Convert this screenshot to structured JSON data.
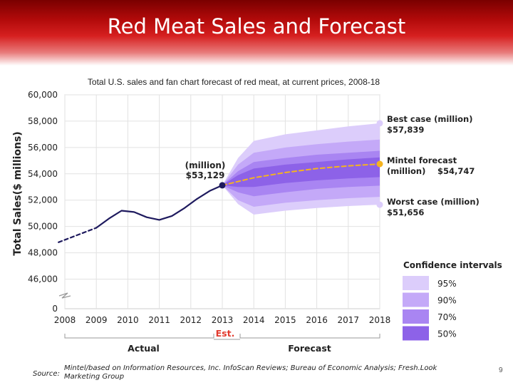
{
  "slide": {
    "title": "Red Meat Sales and Forecast",
    "source_label": "Source:",
    "source_text": "Mintel/based on Information Resources, Inc. InfoScan Reviews; Bureau of Economic Analysis; Fresh.Look Marketing Group",
    "page_number": "9"
  },
  "chart_data": {
    "type": "line",
    "title": "Total U.S. sales and fan chart forecast of red meat, at current prices, 2008-18",
    "xlabel": "",
    "ylabel": "Total Sales($ millions)",
    "x": [
      2008,
      2009,
      2010,
      2011,
      2012,
      2013,
      2014,
      2015,
      2016,
      2017,
      2018
    ],
    "x_tick_labels": [
      "2008",
      "2009",
      "2010",
      "2011",
      "2012",
      "2013",
      "2014",
      "2015",
      "2016",
      "2017",
      "2018"
    ],
    "y_tick_values": [
      46000,
      48000,
      50000,
      52000,
      54000,
      56000,
      58000,
      60000
    ],
    "y_tick_labels": [
      "46,000",
      "48,000",
      "50,000",
      "52,000",
      "54,000",
      "56,000",
      "58,000",
      "60,000"
    ],
    "y_zero_label": "0",
    "ylim": [
      45000,
      60000
    ],
    "grid": true,
    "series": [
      {
        "name": "Actual (dashed, estimated early)",
        "x": [
          2007.8,
          2009
        ],
        "values": [
          48800,
          49900
        ],
        "style": "dashed"
      },
      {
        "name": "Actual",
        "x": [
          2009,
          2009.4,
          2009.8,
          2010.2,
          2010.6,
          2011,
          2011.4,
          2011.8,
          2012.2,
          2012.6,
          2013
        ],
        "values": [
          49900,
          50600,
          51200,
          51100,
          50700,
          50500,
          50800,
          51400,
          52100,
          52700,
          53129
        ],
        "style": "solid"
      },
      {
        "name": "Mintel forecast",
        "x": [
          2013,
          2014,
          2015,
          2016,
          2017,
          2018
        ],
        "values": [
          53129,
          53700,
          54100,
          54400,
          54600,
          54747
        ],
        "style": "dashed"
      }
    ],
    "fan": {
      "x": [
        2013,
        2013.5,
        2014,
        2015,
        2016,
        2017,
        2018
      ],
      "bands": [
        {
          "level": "95%",
          "upper": [
            53129,
            55200,
            56500,
            57000,
            57300,
            57600,
            57839
          ],
          "lower": [
            53129,
            51700,
            50900,
            51200,
            51400,
            51550,
            51656
          ],
          "color": "#dccdfb"
        },
        {
          "level": "90%",
          "upper": [
            53129,
            54700,
            55600,
            56000,
            56250,
            56450,
            56600
          ],
          "lower": [
            53129,
            52000,
            51500,
            51800,
            52000,
            52150,
            52250
          ],
          "color": "#c4a9f8"
        },
        {
          "level": "70%",
          "upper": [
            53129,
            54200,
            54900,
            55200,
            55450,
            55600,
            55750
          ],
          "lower": [
            53129,
            52600,
            52300,
            52600,
            52850,
            53000,
            53100
          ],
          "color": "#a985f2"
        },
        {
          "level": "50%",
          "upper": [
            53129,
            53900,
            54400,
            54700,
            54900,
            55100,
            55250
          ],
          "lower": [
            53129,
            53000,
            53000,
            53300,
            53500,
            53650,
            53750
          ],
          "color": "#8d62e8"
        }
      ]
    },
    "annotations": {
      "current": {
        "line1": "(million)",
        "line2": "$53,129",
        "value": 53129,
        "year": 2013
      },
      "best": {
        "line1": "Best case (million)",
        "line2": "$57,839",
        "value": 57839,
        "year": 2018
      },
      "mintel": {
        "line1": "Mintel forecast",
        "line2a": "(million)",
        "line2b": "$54,747",
        "value": 54747,
        "year": 2018
      },
      "worst": {
        "line1": "Worst case (million)",
        "line2": "$51,656",
        "value": 51656,
        "year": 2018
      }
    },
    "legend": {
      "title": "Confidence intervals",
      "position": "bottom-right",
      "items": [
        {
          "label": "95%",
          "color": "#dccdfb"
        },
        {
          "label": "90%",
          "color": "#c4a9f8"
        },
        {
          "label": "70%",
          "color": "#a985f2"
        },
        {
          "label": "50%",
          "color": "#8d62e8"
        }
      ]
    },
    "period_labels": {
      "actual": "Actual",
      "est": "Est.",
      "forecast": "Forecast"
    },
    "colors": {
      "line": "#1e1a5e",
      "forecast_line": "#f5b31e",
      "point": "#1e1a5e",
      "est": "#e23a2e"
    }
  }
}
